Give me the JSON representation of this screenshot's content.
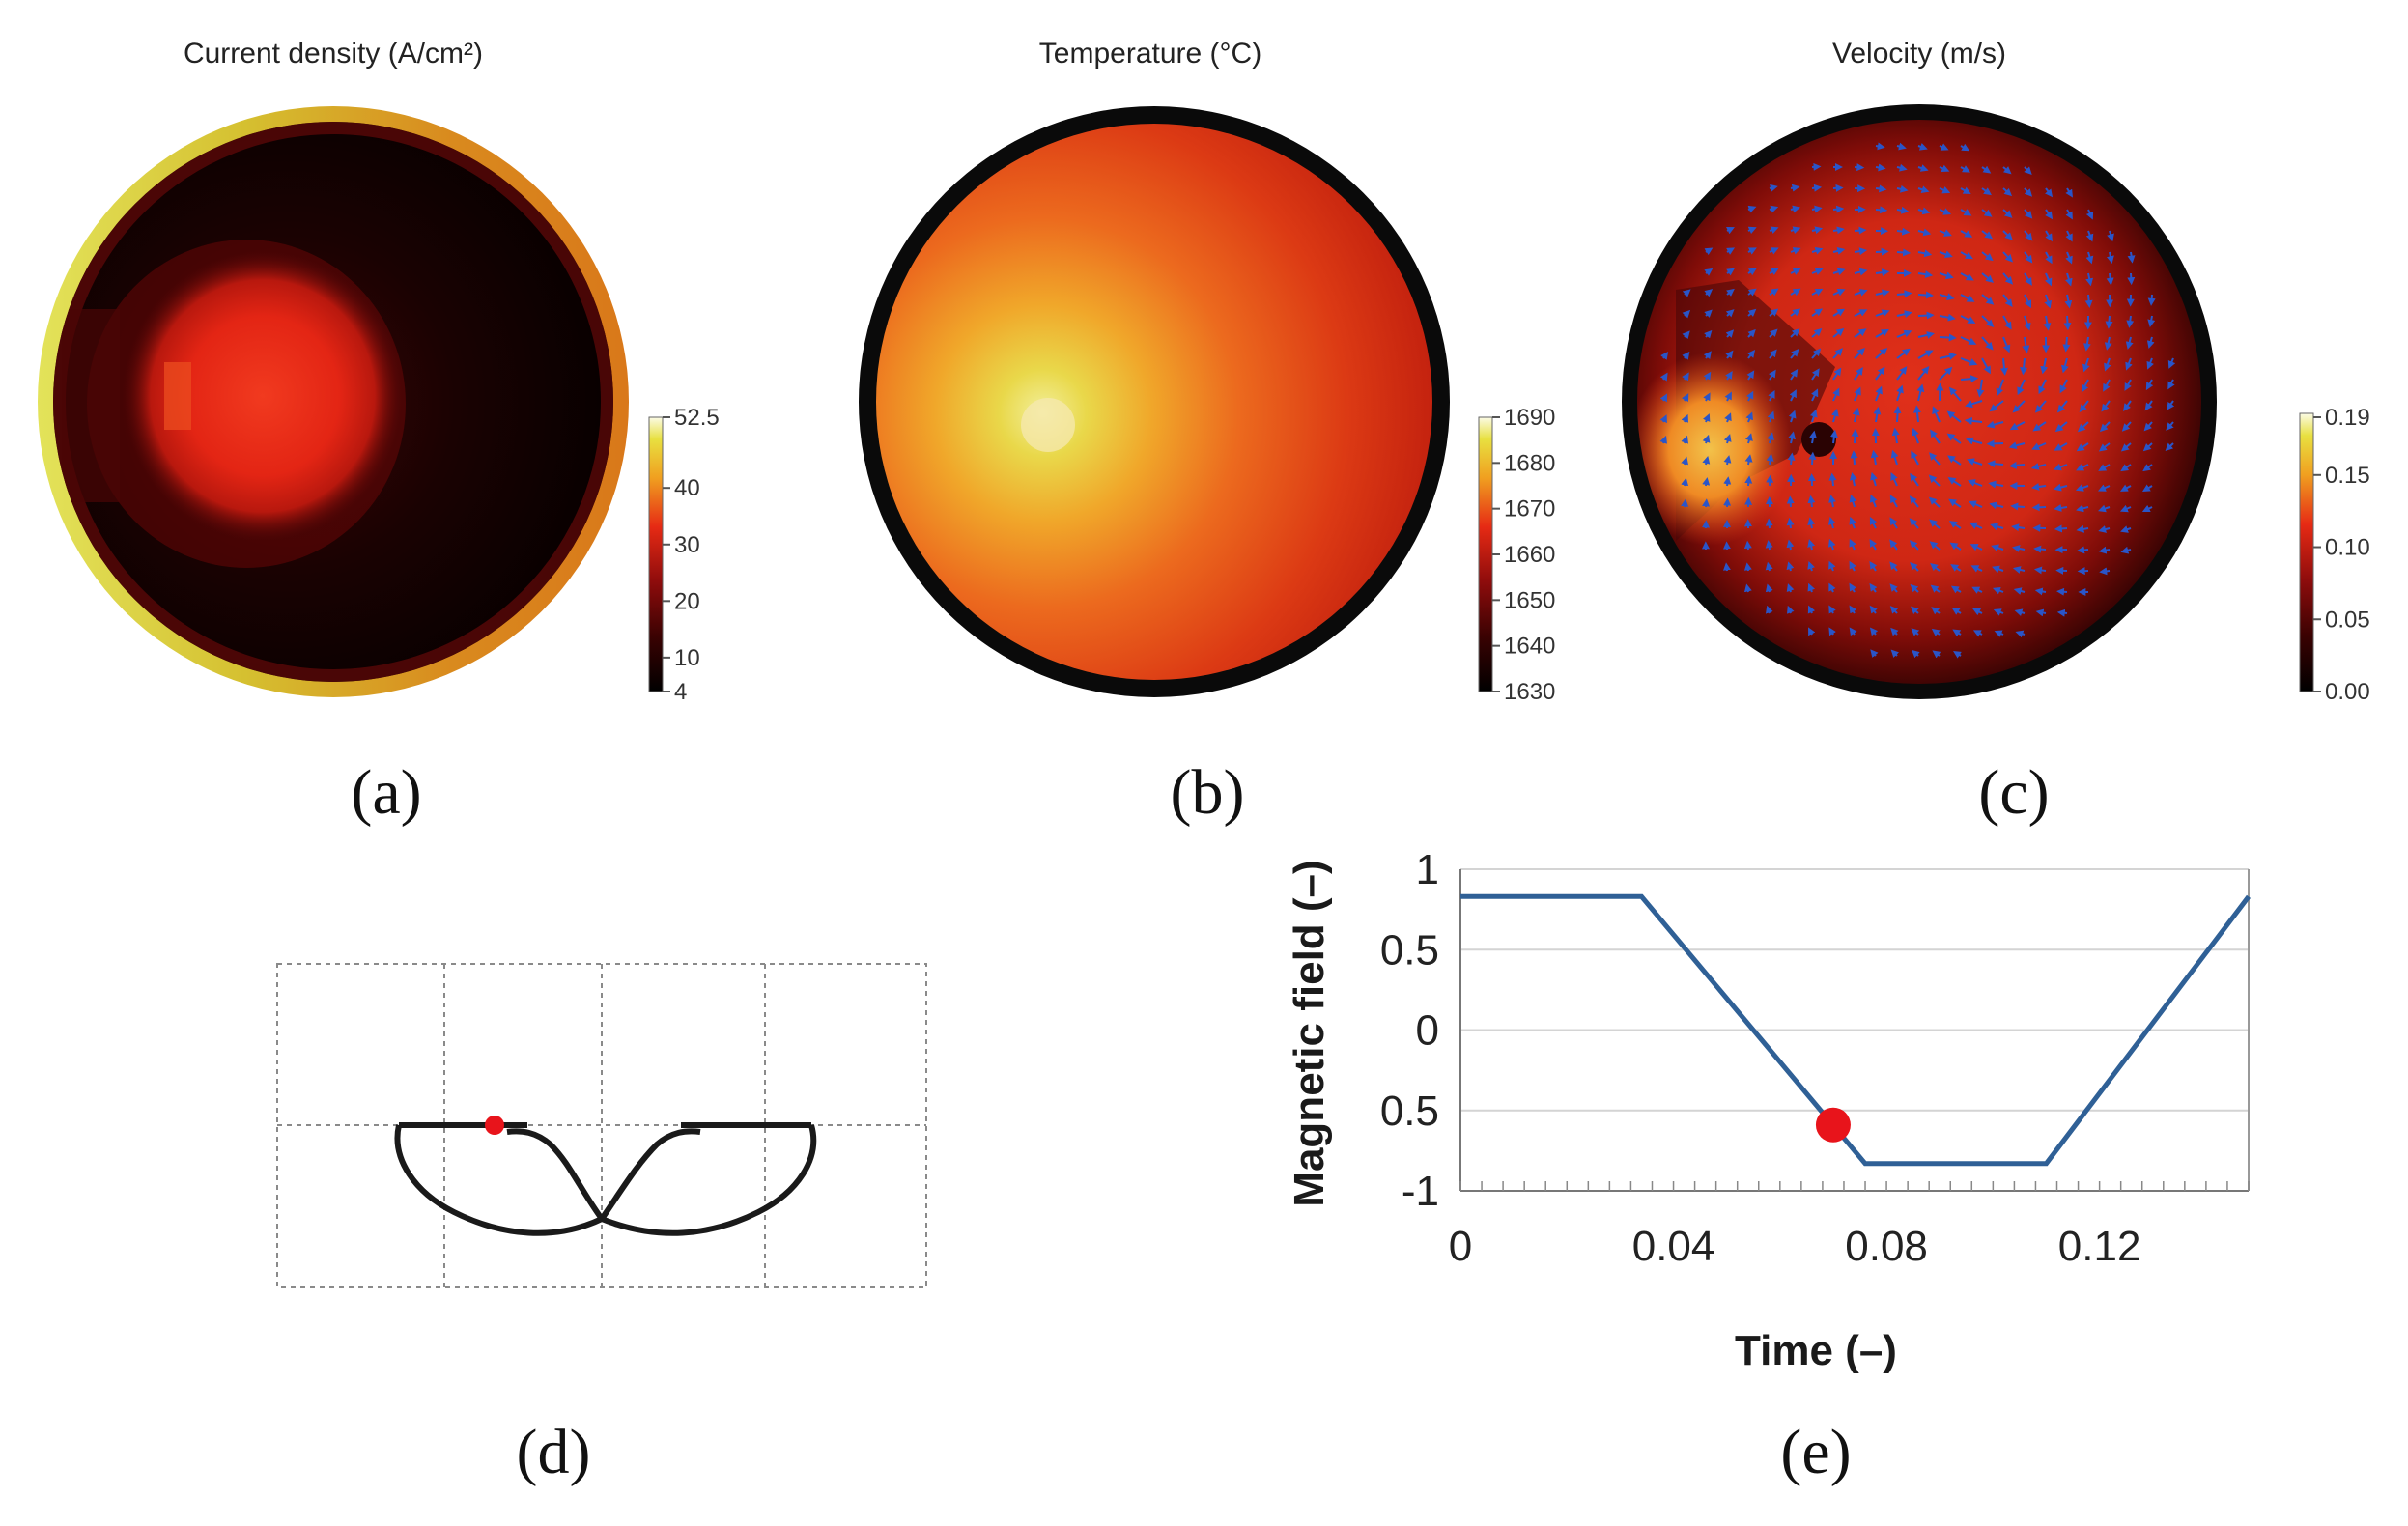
{
  "panels": [
    {
      "id": "a",
      "label": "(a)",
      "title": "Current density (A/cm²)",
      "colorbar": {
        "ticks": [
          "52.5",
          "40",
          "30",
          "20",
          "10",
          "4"
        ],
        "min": 4,
        "max": 52.5
      }
    },
    {
      "id": "b",
      "label": "(b)",
      "title": "Temperature (°C)",
      "colorbar": {
        "ticks": [
          "1690",
          "1680",
          "1670",
          "1660",
          "1650",
          "1640",
          "1630"
        ],
        "min": 1630,
        "max": 1690
      }
    },
    {
      "id": "c",
      "label": "(c)",
      "title": "Velocity (m/s)",
      "colorbar": {
        "ticks": [
          "0.19",
          "0.15",
          "0.10",
          "0.05",
          "0.00"
        ],
        "min": 0.0,
        "max": 0.19
      }
    },
    {
      "id": "d",
      "label": "(d)"
    },
    {
      "id": "e",
      "label": "(e)"
    }
  ],
  "chart_data": [
    {
      "type": "heatmap",
      "title": "Current density (A/cm²)",
      "colormap": "black-red-yellow-white",
      "range": [
        4,
        52.5
      ],
      "description_values": {
        "rim": "high (~40)",
        "left_spot": "~20",
        "interior": "~4-10"
      }
    },
    {
      "type": "heatmap",
      "title": "Temperature (°C)",
      "colormap": "black-red-yellow-white",
      "range": [
        1630,
        1690
      ],
      "description_values": {
        "hot_spot_left": "~1685",
        "bulk": "~1650",
        "wall": "1630"
      }
    },
    {
      "type": "heatmap",
      "title": "Velocity (m/s)",
      "colormap": "black-red-yellow-white",
      "range": [
        0.0,
        0.19
      ],
      "vector_overlay": true
    },
    {
      "type": "line",
      "title": "",
      "xlabel": "Time (–)",
      "ylabel": "Magnetic field (–)",
      "x": [
        0,
        0.034,
        0.076,
        0.11,
        0.148
      ],
      "y": [
        0.83,
        0.83,
        -0.83,
        -0.83,
        0.83
      ],
      "xticks": [
        "0",
        "0.04",
        "0.08",
        "0.12"
      ],
      "yticks": [
        "1",
        "0.5",
        "0",
        "0.5",
        "-1"
      ],
      "xlim": [
        0,
        0.148
      ],
      "ylim": [
        -1,
        1
      ],
      "marker": {
        "x": 0.07,
        "y": -0.59,
        "color": "#e8141b"
      },
      "line_color": "#2f6096"
    }
  ],
  "colors": {
    "marker": "#e8141b",
    "line": "#2f6096",
    "frame_black": "#0a0a0a"
  }
}
